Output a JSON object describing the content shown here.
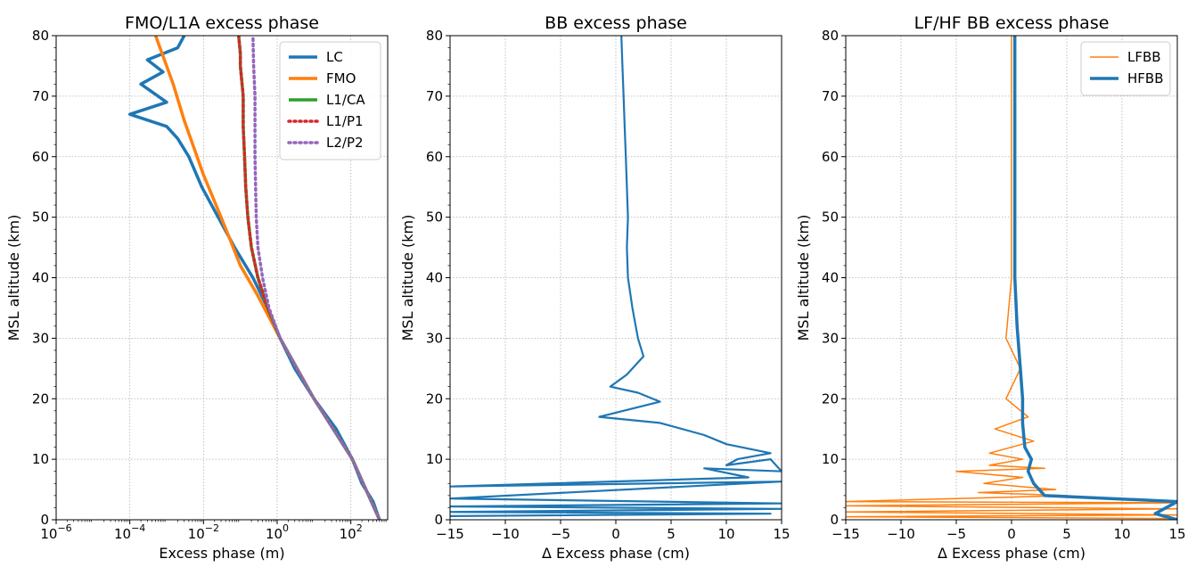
{
  "chart_data": [
    {
      "type": "line",
      "title": "FMO/L1A excess phase",
      "xlabel": "Excess phase (m)",
      "ylabel": "MSL altitude (km)",
      "xscale": "log",
      "xlim": [
        1e-06,
        1000
      ],
      "ylim": [
        0,
        80
      ],
      "xticks": [
        {
          "v": 1e-06,
          "base": "10",
          "exp": "−6"
        },
        {
          "v": 0.0001,
          "base": "10",
          "exp": "−4"
        },
        {
          "v": 0.01,
          "base": "10",
          "exp": "−2"
        },
        {
          "v": 1,
          "base": "10",
          "exp": "0"
        },
        {
          "v": 100,
          "base": "10",
          "exp": "2"
        }
      ],
      "yticks": [
        "0",
        "10",
        "20",
        "30",
        "40",
        "50",
        "60",
        "70",
        "80"
      ],
      "grid": true,
      "legend_position": "top-right",
      "series": [
        {
          "name": "LC",
          "color": "#1f77b4",
          "style": "solid",
          "width": 3.5,
          "points": [
            [
              600,
              0
            ],
            [
              400,
              3
            ],
            [
              200,
              6
            ],
            [
              110,
              10
            ],
            [
              40,
              15
            ],
            [
              10,
              20
            ],
            [
              3,
              25
            ],
            [
              1.2,
              30
            ],
            [
              0.55,
              35
            ],
            [
              0.22,
              40
            ],
            [
              0.07,
              45
            ],
            [
              0.025,
              50
            ],
            [
              0.009,
              55
            ],
            [
              0.004,
              60
            ],
            [
              0.002,
              63
            ],
            [
              0.001,
              65
            ],
            [
              0.0001,
              67
            ],
            [
              0.001,
              69
            ],
            [
              0.0002,
              72
            ],
            [
              0.0008,
              74
            ],
            [
              0.0003,
              76
            ],
            [
              0.002,
              78
            ],
            [
              0.003,
              80
            ]
          ]
        },
        {
          "name": "FMO",
          "color": "#ff7f0e",
          "style": "solid",
          "width": 3.5,
          "points": [
            [
              600,
              0
            ],
            [
              110,
              10
            ],
            [
              10,
              20
            ],
            [
              1.2,
              30
            ],
            [
              0.3,
              37
            ],
            [
              0.1,
              42
            ],
            [
              0.03,
              50
            ],
            [
              0.01,
              57
            ],
            [
              0.003,
              66
            ],
            [
              0.0015,
              72
            ],
            [
              0.0005,
              80
            ]
          ]
        },
        {
          "name": "L1/CA",
          "color": "#2ca02c",
          "style": "solid",
          "width": 3.5,
          "points": [
            [
              600,
              0
            ],
            [
              110,
              10
            ],
            [
              10,
              20
            ],
            [
              1.2,
              30
            ],
            [
              0.55,
              35
            ],
            [
              0.3,
              40
            ],
            [
              0.2,
              45
            ],
            [
              0.16,
              50
            ],
            [
              0.14,
              55
            ],
            [
              0.13,
              60
            ],
            [
              0.12,
              65
            ],
            [
              0.12,
              70
            ],
            [
              0.1,
              75
            ],
            [
              0.1,
              77
            ],
            [
              0.09,
              80
            ]
          ]
        },
        {
          "name": "L1/P1",
          "color": "#d62728",
          "style": "dotted",
          "width": 3.5,
          "points": [
            [
              600,
              0
            ],
            [
              110,
              10
            ],
            [
              10,
              20
            ],
            [
              1.2,
              30
            ],
            [
              0.55,
              35
            ],
            [
              0.3,
              40
            ],
            [
              0.2,
              45
            ],
            [
              0.16,
              50
            ],
            [
              0.14,
              55
            ],
            [
              0.13,
              60
            ],
            [
              0.12,
              65
            ],
            [
              0.12,
              70
            ],
            [
              0.1,
              75
            ],
            [
              0.1,
              77
            ],
            [
              0.09,
              80
            ]
          ]
        },
        {
          "name": "L2/P2",
          "color": "#9467bd",
          "style": "dotted",
          "width": 3.5,
          "points": [
            [
              600,
              0
            ],
            [
              110,
              10
            ],
            [
              10,
              20
            ],
            [
              1.2,
              30
            ],
            [
              0.6,
              35
            ],
            [
              0.4,
              40
            ],
            [
              0.3,
              45
            ],
            [
              0.27,
              50
            ],
            [
              0.26,
              55
            ],
            [
              0.25,
              60
            ],
            [
              0.25,
              65
            ],
            [
              0.25,
              70
            ],
            [
              0.23,
              75
            ],
            [
              0.22,
              80
            ]
          ]
        }
      ]
    },
    {
      "type": "line",
      "title": "BB excess phase",
      "xlabel": "Δ Excess phase (cm)",
      "ylabel": "MSL altitude (km)",
      "xlim": [
        -15,
        15
      ],
      "ylim": [
        0,
        80
      ],
      "xticks": [
        "−15",
        "−10",
        "−5",
        "0",
        "5",
        "10",
        "15"
      ],
      "yticks": [
        "0",
        "10",
        "20",
        "30",
        "40",
        "50",
        "60",
        "70",
        "80"
      ],
      "grid": true,
      "series": [
        {
          "color": "#1f77b4",
          "style": "solid",
          "width": 2.2,
          "points": [
            [
              0.5,
              80
            ],
            [
              0.6,
              75
            ],
            [
              0.7,
              70
            ],
            [
              0.8,
              65
            ],
            [
              0.9,
              60
            ],
            [
              1,
              55
            ],
            [
              1.1,
              50
            ],
            [
              1,
              45
            ],
            [
              1.1,
              40
            ],
            [
              1.5,
              35
            ],
            [
              2,
              30
            ],
            [
              2.5,
              27
            ],
            [
              1,
              24
            ],
            [
              -0.5,
              22
            ],
            [
              2,
              21
            ],
            [
              4,
              19.5
            ],
            [
              -1.5,
              17
            ],
            [
              4,
              16
            ],
            [
              8,
              14
            ],
            [
              10,
              12.5
            ],
            [
              14,
              11
            ],
            [
              11,
              10
            ],
            [
              10,
              9
            ],
            [
              14,
              10
            ],
            [
              15,
              8
            ],
            [
              8,
              8.5
            ],
            [
              12,
              7
            ],
            [
              -15,
              5.5
            ],
            [
              15,
              6.3
            ],
            [
              -15,
              3.5
            ],
            [
              15,
              2.7
            ],
            [
              -15,
              2.2
            ],
            [
              15,
              1.8
            ],
            [
              -15,
              1.3
            ],
            [
              14,
              1
            ],
            [
              -15,
              0.6
            ]
          ]
        }
      ]
    },
    {
      "type": "line",
      "title": "LF/HF BB excess phase",
      "xlabel": "Δ Excess phase (cm)",
      "ylabel": "MSL altitude (km)",
      "xlim": [
        -15,
        15
      ],
      "ylim": [
        0,
        80
      ],
      "xticks": [
        "−15",
        "−10",
        "−5",
        "0",
        "5",
        "10",
        "15"
      ],
      "yticks": [
        "0",
        "10",
        "20",
        "30",
        "40",
        "50",
        "60",
        "70",
        "80"
      ],
      "grid": true,
      "legend_position": "top-right",
      "series": [
        {
          "name": "LFBB",
          "color": "#ff7f0e",
          "style": "solid",
          "width": 1.5,
          "points": [
            [
              0,
              80
            ],
            [
              0,
              70
            ],
            [
              0,
              60
            ],
            [
              0,
              50
            ],
            [
              0,
              40
            ],
            [
              -0.5,
              30
            ],
            [
              0.8,
              25
            ],
            [
              -0.5,
              20
            ],
            [
              1.5,
              17
            ],
            [
              -1.5,
              15
            ],
            [
              2,
              13
            ],
            [
              -2,
              11
            ],
            [
              1,
              10
            ],
            [
              -2,
              9
            ],
            [
              3,
              8.5
            ],
            [
              -5,
              8
            ],
            [
              1,
              7
            ],
            [
              -2.5,
              6
            ],
            [
              4,
              5
            ],
            [
              -3,
              4.5
            ],
            [
              5,
              4
            ],
            [
              -15,
              3
            ],
            [
              15,
              2.8
            ],
            [
              -15,
              2.3
            ],
            [
              15,
              1.8
            ],
            [
              -15,
              1.3
            ],
            [
              15,
              0.8
            ],
            [
              -15,
              0.5
            ],
            [
              15,
              0.2
            ]
          ]
        },
        {
          "name": "HFBB",
          "color": "#1f77b4",
          "style": "solid",
          "width": 3.5,
          "points": [
            [
              0.3,
              80
            ],
            [
              0.3,
              70
            ],
            [
              0.3,
              60
            ],
            [
              0.3,
              50
            ],
            [
              0.3,
              40
            ],
            [
              0.5,
              32
            ],
            [
              0.8,
              25
            ],
            [
              1,
              20
            ],
            [
              1,
              16
            ],
            [
              1.2,
              12
            ],
            [
              1.8,
              10
            ],
            [
              1.5,
              8
            ],
            [
              2,
              6
            ],
            [
              3,
              4
            ],
            [
              15,
              3
            ],
            [
              13,
              1
            ],
            [
              15,
              0
            ]
          ]
        }
      ]
    }
  ]
}
